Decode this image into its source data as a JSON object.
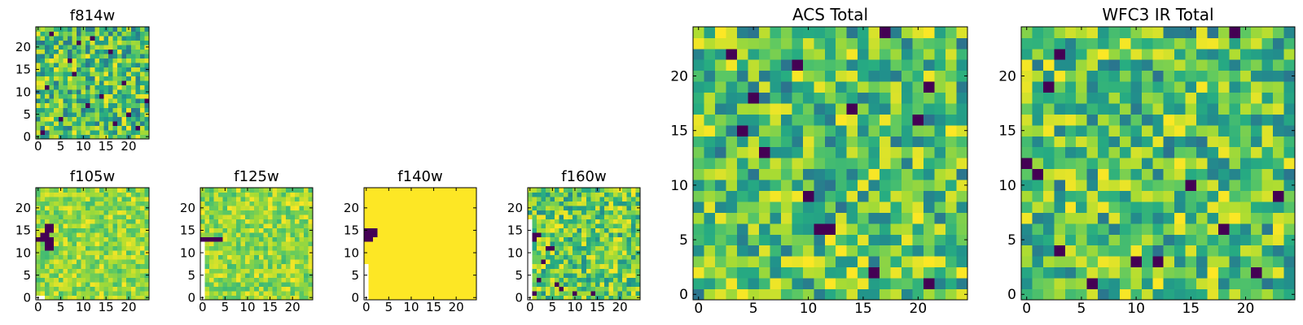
{
  "colors": {
    "colormap": "viridis",
    "background": "#ffffff",
    "axes_frame": "#000000",
    "masked_pixel": "#ffffff"
  },
  "chart_data": [
    {
      "type": "heatmap",
      "title": "f814w",
      "colormap": "viridis",
      "grid_size": 25,
      "x_ticks": [
        0,
        5,
        10,
        15,
        20
      ],
      "y_ticks": [
        0,
        5,
        10,
        15,
        20
      ],
      "xlim": [
        -0.5,
        24.5
      ],
      "ylim": [
        -0.5,
        24.5
      ],
      "pattern": "noise",
      "seed": 814,
      "rows_bottom_to_top": [],
      "dark_cells": [
        [
          3,
          23
        ],
        [
          9,
          21
        ],
        [
          16,
          19
        ],
        [
          8,
          14
        ],
        [
          2,
          11
        ],
        [
          14,
          9
        ],
        [
          11,
          7
        ],
        [
          20,
          5
        ],
        [
          5,
          4
        ],
        [
          17,
          3
        ],
        [
          22,
          2
        ],
        [
          1,
          1
        ],
        [
          12,
          22
        ],
        [
          7,
          17
        ],
        [
          19,
          12
        ],
        [
          24,
          8
        ]
      ],
      "masked_cells": []
    },
    {
      "type": "heatmap",
      "title": "f105w",
      "colormap": "viridis",
      "grid_size": 25,
      "x_ticks": [
        0,
        5,
        10,
        15,
        20
      ],
      "y_ticks": [
        0,
        5,
        10,
        15,
        20
      ],
      "xlim": [
        -0.5,
        24.5
      ],
      "ylim": [
        -0.5,
        24.5
      ],
      "pattern": "bright",
      "seed": 105,
      "rows_bottom_to_top": [],
      "dark_cells": [
        [
          0,
          13
        ],
        [
          1,
          13
        ],
        [
          2,
          13
        ],
        [
          3,
          13
        ],
        [
          2,
          12
        ],
        [
          3,
          12
        ],
        [
          2,
          11
        ],
        [
          3,
          11
        ],
        [
          2,
          15
        ],
        [
          3,
          15
        ],
        [
          2,
          16
        ],
        [
          3,
          16
        ],
        [
          1,
          14
        ],
        [
          2,
          14
        ]
      ],
      "masked_cells": [
        [
          0,
          0
        ],
        [
          1,
          0
        ]
      ]
    },
    {
      "type": "heatmap",
      "title": "f125w",
      "colormap": "viridis",
      "grid_size": 25,
      "x_ticks": [
        0,
        5,
        10,
        15,
        20
      ],
      "y_ticks": [
        0,
        5,
        10,
        15,
        20
      ],
      "xlim": [
        -0.5,
        24.5
      ],
      "ylim": [
        -0.5,
        24.5
      ],
      "pattern": "bright",
      "seed": 125,
      "rows_bottom_to_top": [],
      "dark_cells": [
        [
          0,
          13
        ],
        [
          1,
          13
        ],
        [
          2,
          13
        ],
        [
          3,
          13
        ],
        [
          4,
          13
        ]
      ],
      "masked_cells": [
        [
          0,
          0
        ],
        [
          0,
          1
        ],
        [
          0,
          2
        ],
        [
          0,
          3
        ],
        [
          0,
          4
        ],
        [
          0,
          5
        ],
        [
          0,
          6
        ],
        [
          0,
          7
        ],
        [
          0,
          8
        ],
        [
          0,
          9
        ],
        [
          0,
          10
        ],
        [
          0,
          11
        ],
        [
          0,
          12
        ]
      ]
    },
    {
      "type": "heatmap",
      "title": "f140w",
      "colormap": "viridis",
      "grid_size": 25,
      "x_ticks": [
        0,
        5,
        10,
        15,
        20
      ],
      "y_ticks": [
        0,
        5,
        10,
        15,
        20
      ],
      "xlim": [
        -0.5,
        24.5
      ],
      "ylim": [
        -0.5,
        24.5
      ],
      "pattern": "saturated",
      "seed": 140,
      "rows_bottom_to_top": [],
      "dark_cells": [
        [
          0,
          13
        ],
        [
          1,
          13
        ],
        [
          0,
          14
        ],
        [
          1,
          14
        ],
        [
          2,
          14
        ],
        [
          0,
          15
        ],
        [
          1,
          15
        ],
        [
          2,
          15
        ]
      ],
      "masked_cells": [
        [
          0,
          0
        ],
        [
          0,
          1
        ],
        [
          0,
          2
        ],
        [
          0,
          3
        ],
        [
          0,
          4
        ],
        [
          0,
          5
        ],
        [
          0,
          6
        ],
        [
          0,
          7
        ]
      ]
    },
    {
      "type": "heatmap",
      "title": "f160w",
      "colormap": "viridis",
      "grid_size": 25,
      "x_ticks": [
        0,
        5,
        10,
        15,
        20
      ],
      "y_ticks": [
        0,
        5,
        10,
        15,
        20
      ],
      "xlim": [
        -0.5,
        24.5
      ],
      "ylim": [
        -0.5,
        24.5
      ],
      "pattern": "mixed",
      "seed": 160,
      "rows_bottom_to_top": [],
      "dark_cells": [
        [
          1,
          14
        ],
        [
          2,
          14
        ],
        [
          1,
          13
        ],
        [
          4,
          11
        ],
        [
          5,
          11
        ],
        [
          3,
          8
        ],
        [
          2,
          4
        ],
        [
          6,
          3
        ],
        [
          7,
          2
        ],
        [
          10,
          1
        ],
        [
          14,
          1
        ],
        [
          1,
          1
        ]
      ],
      "masked_cells": [
        [
          0,
          0
        ],
        [
          0,
          1
        ],
        [
          0,
          2
        ],
        [
          0,
          3
        ],
        [
          0,
          4
        ],
        [
          0,
          5
        ],
        [
          0,
          6
        ],
        [
          0,
          7
        ],
        [
          0,
          8
        ],
        [
          0,
          9
        ],
        [
          0,
          10
        ],
        [
          0,
          11
        ],
        [
          0,
          12
        ],
        [
          0,
          13
        ],
        [
          0,
          14
        ],
        [
          0,
          15
        ],
        [
          0,
          16
        ],
        [
          0,
          17
        ]
      ]
    },
    {
      "type": "heatmap",
      "title": "ACS Total",
      "colormap": "viridis",
      "grid_size": 25,
      "x_ticks": [
        0,
        5,
        10,
        15,
        20
      ],
      "y_ticks": [
        0,
        5,
        10,
        15,
        20
      ],
      "xlim": [
        -0.5,
        24.5
      ],
      "ylim": [
        -0.5,
        24.5
      ],
      "pattern": "noise",
      "seed": 2001,
      "rows_bottom_to_top": [],
      "dark_cells": [
        [
          5,
          18
        ],
        [
          14,
          17
        ],
        [
          21,
          19
        ],
        [
          4,
          15
        ],
        [
          6,
          13
        ],
        [
          10,
          9
        ],
        [
          11,
          6
        ],
        [
          12,
          6
        ],
        [
          16,
          2
        ],
        [
          21,
          1
        ],
        [
          20,
          16
        ],
        [
          3,
          22
        ],
        [
          17,
          24
        ],
        [
          9,
          21
        ]
      ],
      "masked_cells": []
    },
    {
      "type": "heatmap",
      "title": "WFC3 IR Total",
      "colormap": "viridis",
      "grid_size": 25,
      "x_ticks": [
        0,
        5,
        10,
        15,
        20
      ],
      "y_ticks": [
        0,
        5,
        10,
        15,
        20
      ],
      "xlim": [
        -0.5,
        24.5
      ],
      "ylim": [
        -0.5,
        24.5
      ],
      "pattern": "noise",
      "seed": 3001,
      "rows_bottom_to_top": [],
      "dark_cells": [
        [
          19,
          24
        ],
        [
          3,
          22
        ],
        [
          2,
          19
        ],
        [
          0,
          12
        ],
        [
          1,
          11
        ],
        [
          15,
          10
        ],
        [
          23,
          9
        ],
        [
          3,
          4
        ],
        [
          10,
          3
        ],
        [
          12,
          3
        ],
        [
          21,
          2
        ],
        [
          6,
          1
        ],
        [
          18,
          6
        ]
      ],
      "masked_cells": []
    }
  ]
}
